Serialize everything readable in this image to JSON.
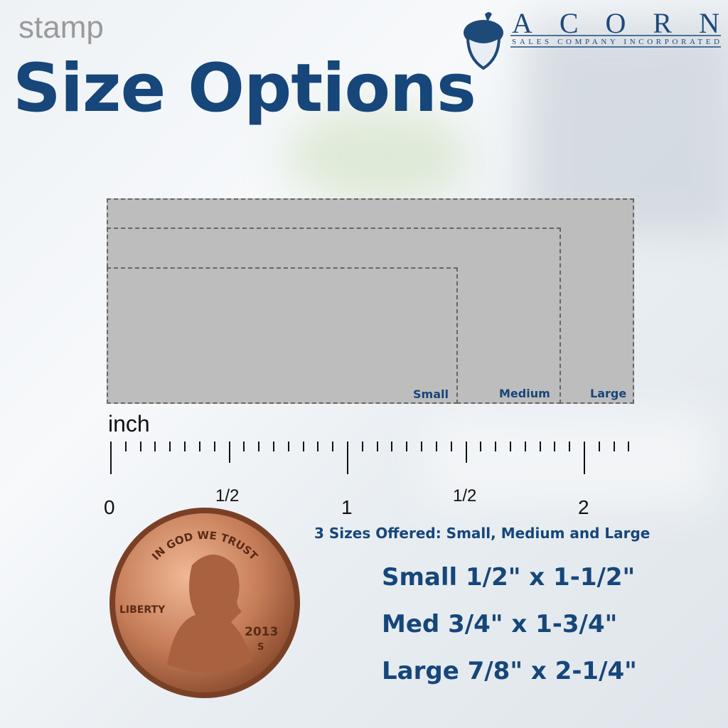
{
  "header": {
    "eyebrow": "stamp",
    "title": "Size Options"
  },
  "logo": {
    "name": "ACORN",
    "tagline": "SALES COMPANY INCORPORATED",
    "icon": "acorn-icon"
  },
  "sizes": [
    {
      "label": "Small",
      "height_in": 0.5,
      "width_in": 1.5
    },
    {
      "label": "Medium",
      "height_in": 0.75,
      "width_in": 1.75
    },
    {
      "label": "Large",
      "height_in": 0.875,
      "width_in": 2.25
    }
  ],
  "ruler": {
    "unit": "inch",
    "labels": [
      "0",
      "1/2",
      "1",
      "1/2",
      "2"
    ],
    "max_in": 2.1875,
    "tick_step_in": 0.0625
  },
  "coin": {
    "top_text": "IN GOD WE TRUST",
    "left_text": "LIBERTY",
    "year": "2013",
    "mint": "S"
  },
  "info": {
    "offered": "3 Sizes Offered:  Small, Medium and Large",
    "specs": [
      "Small 1/2\" x 1-1/2\"",
      "Med 3/4\" x 1-3/4\"",
      "Large 7/8\" x 2-1/4\""
    ]
  },
  "colors": {
    "brand": "#16467a",
    "box": "#bdbdbd",
    "copper": "#c07a55"
  }
}
